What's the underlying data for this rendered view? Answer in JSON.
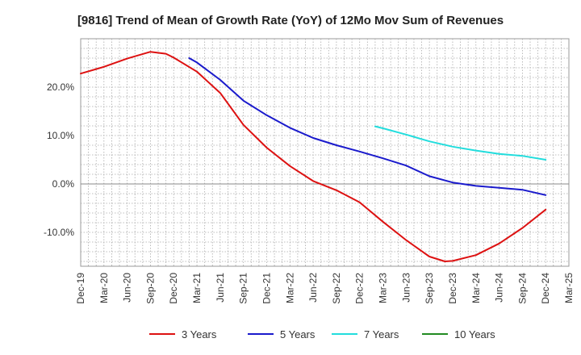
{
  "chart_data": {
    "type": "line",
    "title": "[9816]  Trend of Mean of Growth Rate (YoY) of 12Mo Mov Sum of Revenues",
    "xlabel": "",
    "ylabel": "",
    "ylim": [
      -17,
      30
    ],
    "y_ticks": [
      {
        "value": 20,
        "label": "20.0%"
      },
      {
        "value": 10,
        "label": "10.0%"
      },
      {
        "value": 0,
        "label": "0.0%"
      },
      {
        "value": -10,
        "label": "-10.0%"
      }
    ],
    "x_start": "Dec-19",
    "x_end": "Mar-25",
    "x_ticks": [
      "Dec-19",
      "Mar-20",
      "Jun-20",
      "Sep-20",
      "Dec-20",
      "Mar-21",
      "Jun-21",
      "Sep-21",
      "Dec-21",
      "Mar-22",
      "Jun-22",
      "Sep-22",
      "Dec-22",
      "Mar-23",
      "Jun-23",
      "Sep-23",
      "Dec-23",
      "Mar-24",
      "Jun-24",
      "Sep-24",
      "Dec-24",
      "Mar-25"
    ],
    "grid": true,
    "legend_position": "bottom",
    "series": [
      {
        "name": "3 Years",
        "color": "#dd1111",
        "points": [
          {
            "x": "Dec-19",
            "y": 22.8
          },
          {
            "x": "Mar-20",
            "y": 24.2
          },
          {
            "x": "Jun-20",
            "y": 25.9
          },
          {
            "x": "Sep-20",
            "y": 27.3
          },
          {
            "x": "Nov-20",
            "y": 26.9
          },
          {
            "x": "Dec-20",
            "y": 26.1
          },
          {
            "x": "Mar-21",
            "y": 23.2
          },
          {
            "x": "Jun-21",
            "y": 18.8
          },
          {
            "x": "Sep-21",
            "y": 12.2
          },
          {
            "x": "Dec-21",
            "y": 7.5
          },
          {
            "x": "Mar-22",
            "y": 3.7
          },
          {
            "x": "Jun-22",
            "y": 0.6
          },
          {
            "x": "Sep-22",
            "y": -1.3
          },
          {
            "x": "Dec-22",
            "y": -3.8
          },
          {
            "x": "Mar-23",
            "y": -7.8
          },
          {
            "x": "Jun-23",
            "y": -11.6
          },
          {
            "x": "Sep-23",
            "y": -15.0
          },
          {
            "x": "Nov-23",
            "y": -16.0
          },
          {
            "x": "Dec-23",
            "y": -15.9
          },
          {
            "x": "Mar-24",
            "y": -14.7
          },
          {
            "x": "Jun-24",
            "y": -12.3
          },
          {
            "x": "Sep-24",
            "y": -9.1
          },
          {
            "x": "Dec-24",
            "y": -5.3
          }
        ]
      },
      {
        "name": "5 Years",
        "color": "#1a1acc",
        "points": [
          {
            "x": "Feb-21",
            "y": 26.0
          },
          {
            "x": "Mar-21",
            "y": 25.1
          },
          {
            "x": "Jun-21",
            "y": 21.5
          },
          {
            "x": "Sep-21",
            "y": 17.2
          },
          {
            "x": "Dec-21",
            "y": 14.2
          },
          {
            "x": "Mar-22",
            "y": 11.6
          },
          {
            "x": "Jun-22",
            "y": 9.5
          },
          {
            "x": "Sep-22",
            "y": 8.0
          },
          {
            "x": "Dec-22",
            "y": 6.7
          },
          {
            "x": "Mar-23",
            "y": 5.3
          },
          {
            "x": "Jun-23",
            "y": 3.8
          },
          {
            "x": "Sep-23",
            "y": 1.6
          },
          {
            "x": "Dec-23",
            "y": 0.3
          },
          {
            "x": "Mar-24",
            "y": -0.4
          },
          {
            "x": "Jun-24",
            "y": -0.8
          },
          {
            "x": "Sep-24",
            "y": -1.2
          },
          {
            "x": "Dec-24",
            "y": -2.3
          }
        ]
      },
      {
        "name": "7 Years",
        "color": "#22dddd",
        "points": [
          {
            "x": "Feb-23",
            "y": 11.9
          },
          {
            "x": "Mar-23",
            "y": 11.5
          },
          {
            "x": "Jun-23",
            "y": 10.2
          },
          {
            "x": "Sep-23",
            "y": 8.8
          },
          {
            "x": "Dec-23",
            "y": 7.7
          },
          {
            "x": "Mar-24",
            "y": 6.9
          },
          {
            "x": "Jun-24",
            "y": 6.2
          },
          {
            "x": "Sep-24",
            "y": 5.8
          },
          {
            "x": "Dec-24",
            "y": 5.0
          }
        ]
      },
      {
        "name": "10 Years",
        "color": "#228b22",
        "points": []
      }
    ]
  }
}
